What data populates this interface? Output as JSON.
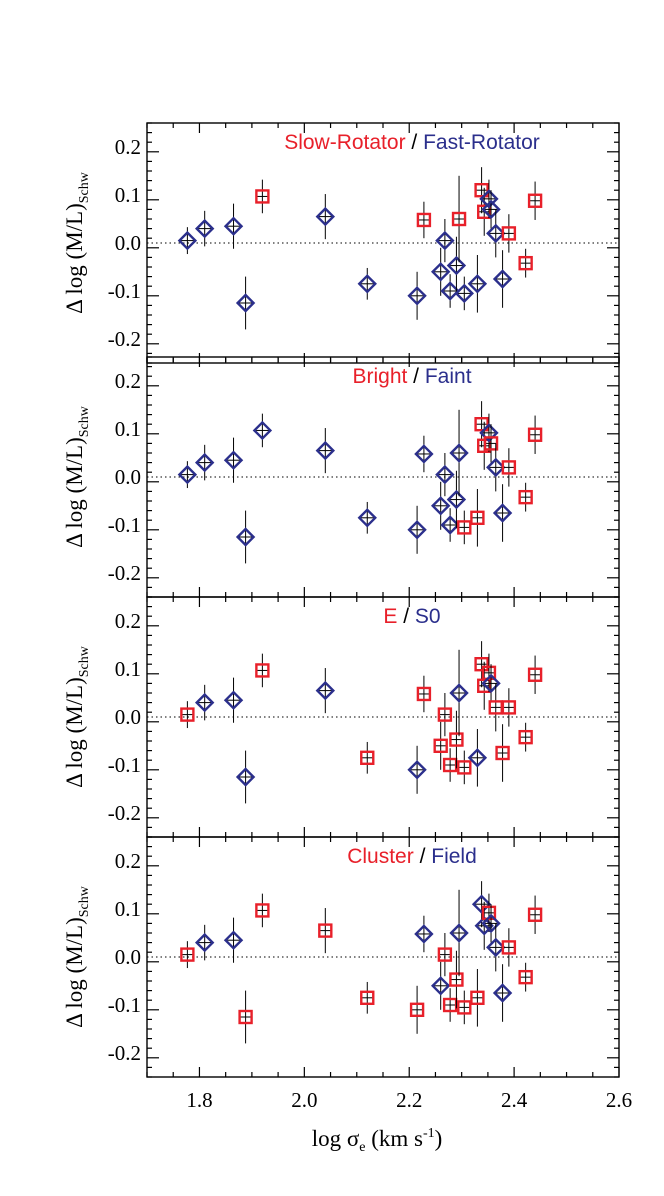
{
  "chart_data": {
    "type": "scatter",
    "layout": "4 vertically stacked panels sharing x axis",
    "xlim": [
      1.7,
      2.6
    ],
    "ylim": [
      -0.25,
      0.25
    ],
    "x_ticks": [
      "1.8",
      "2.0",
      "2.2",
      "2.4",
      "2.6"
    ],
    "y_ticks": [
      "-0.2",
      "-0.1",
      "0.0",
      "0.1",
      "0.2"
    ],
    "xlabel": {
      "main": "log σ",
      "sub": "e",
      "unit": " (km s",
      "sup": "-1",
      "close": ")"
    },
    "ylabel": {
      "main": "Δ log (M/L)",
      "sub": "Schw"
    },
    "reference_line": {
      "y": 0.0,
      "style": "dotted"
    },
    "grid": false,
    "colors": {
      "red": "#e8202a",
      "blue": "#2b2f8c"
    },
    "marker_shapes": {
      "red": "square",
      "blue": "diamond"
    },
    "points": [
      {
        "x": 1.777,
        "y": 0.005,
        "xerr": 0.012,
        "yerr": 0.028
      },
      {
        "x": 1.81,
        "y": 0.03,
        "xerr": 0.012,
        "yerr": 0.037
      },
      {
        "x": 1.865,
        "y": 0.035,
        "xerr": 0.012,
        "yerr": 0.047
      },
      {
        "x": 1.888,
        "y": -0.125,
        "xerr": 0.012,
        "yerr": 0.055
      },
      {
        "x": 1.92,
        "y": 0.097,
        "xerr": 0.012,
        "yerr": 0.035
      },
      {
        "x": 2.04,
        "y": 0.055,
        "xerr": 0.012,
        "yerr": 0.047
      },
      {
        "x": 2.12,
        "y": -0.085,
        "xerr": 0.012,
        "yerr": 0.033
      },
      {
        "x": 2.215,
        "y": -0.11,
        "xerr": 0.012,
        "yerr": 0.05
      },
      {
        "x": 2.228,
        "y": 0.048,
        "xerr": 0.012,
        "yerr": 0.038
      },
      {
        "x": 2.26,
        "y": -0.06,
        "xerr": 0.012,
        "yerr": 0.05
      },
      {
        "x": 2.268,
        "y": 0.005,
        "xerr": 0.012,
        "yerr": 0.045
      },
      {
        "x": 2.278,
        "y": -0.1,
        "xerr": 0.012,
        "yerr": 0.035
      },
      {
        "x": 2.29,
        "y": -0.047,
        "xerr": 0.012,
        "yerr": 0.06
      },
      {
        "x": 2.295,
        "y": 0.05,
        "xerr": 0.012,
        "yerr": 0.09
      },
      {
        "x": 2.305,
        "y": -0.105,
        "xerr": 0.012,
        "yerr": 0.035
      },
      {
        "x": 2.33,
        "y": -0.085,
        "xerr": 0.012,
        "yerr": 0.06
      },
      {
        "x": 2.338,
        "y": 0.11,
        "xerr": 0.012,
        "yerr": 0.048
      },
      {
        "x": 2.343,
        "y": 0.065,
        "xerr": 0.012,
        "yerr": 0.05
      },
      {
        "x": 2.352,
        "y": 0.092,
        "xerr": 0.012,
        "yerr": 0.04
      },
      {
        "x": 2.356,
        "y": 0.07,
        "xerr": 0.012,
        "yerr": 0.04
      },
      {
        "x": 2.365,
        "y": 0.02,
        "xerr": 0.012,
        "yerr": 0.05
      },
      {
        "x": 2.378,
        "y": -0.075,
        "xerr": 0.012,
        "yerr": 0.06
      },
      {
        "x": 2.39,
        "y": 0.02,
        "xerr": 0.012,
        "yerr": 0.04
      },
      {
        "x": 2.422,
        "y": -0.042,
        "xerr": 0.012,
        "yerr": 0.03
      },
      {
        "x": 2.44,
        "y": 0.088,
        "xerr": 0.012,
        "yerr": 0.04
      }
    ],
    "panels": [
      {
        "legend": {
          "left": "Slow-Rotator",
          "sep": " / ",
          "right": "Fast-Rotator"
        },
        "groups": [
          "blue",
          "blue",
          "blue",
          "blue",
          "red",
          "blue",
          "blue",
          "blue",
          "red",
          "blue",
          "blue",
          "blue",
          "blue",
          "red",
          "blue",
          "blue",
          "red",
          "red",
          "blue",
          "blue",
          "blue",
          "blue",
          "red",
          "red",
          "red"
        ]
      },
      {
        "legend": {
          "left": "Bright",
          "sep": " / ",
          "right": "Faint"
        },
        "groups": [
          "blue",
          "blue",
          "blue",
          "blue",
          "blue",
          "blue",
          "blue",
          "blue",
          "blue",
          "blue",
          "blue",
          "blue",
          "blue",
          "blue",
          "red",
          "red",
          "red",
          "red",
          "blue",
          "red",
          "blue",
          "blue",
          "red",
          "red",
          "red"
        ]
      },
      {
        "legend": {
          "left": "E",
          "sep": " / ",
          "right": "S0"
        },
        "groups": [
          "red",
          "blue",
          "blue",
          "blue",
          "red",
          "blue",
          "red",
          "blue",
          "red",
          "red",
          "red",
          "red",
          "red",
          "blue",
          "red",
          "blue",
          "red",
          "red",
          "red",
          "blue",
          "red",
          "red",
          "red",
          "red",
          "red"
        ]
      },
      {
        "legend": {
          "left": "Cluster",
          "sep": " / ",
          "right": "Field"
        },
        "groups": [
          "red",
          "blue",
          "blue",
          "red",
          "red",
          "red",
          "red",
          "red",
          "blue",
          "blue",
          "red",
          "red",
          "red",
          "blue",
          "red",
          "red",
          "blue",
          "blue",
          "red",
          "blue",
          "blue",
          "blue",
          "red",
          "red",
          "red"
        ]
      }
    ]
  }
}
